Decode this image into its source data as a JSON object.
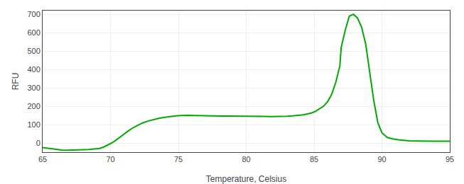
{
  "chart_data": {
    "type": "line",
    "xlabel": "Temperature, Celsius",
    "ylabel": "RFU",
    "x": [
      65.0,
      65.3,
      65.6,
      66.0,
      66.4,
      66.8,
      67.2,
      67.6,
      68.0,
      68.4,
      68.8,
      69.2,
      69.5,
      69.8,
      70.1,
      70.4,
      70.7,
      71.0,
      71.3,
      71.6,
      72.0,
      72.4,
      72.8,
      73.2,
      73.6,
      74.0,
      74.4,
      74.8,
      75.2,
      75.5,
      75.8,
      76.2,
      76.6,
      77.0,
      77.4,
      77.8,
      78.2,
      78.6,
      79.0,
      79.4,
      79.8,
      80.2,
      80.6,
      81.0,
      81.4,
      81.8,
      82.2,
      82.6,
      83.0,
      83.4,
      83.8,
      84.2,
      84.5,
      84.8,
      85.1,
      85.4,
      85.7,
      86.0,
      86.3,
      86.6,
      86.9,
      87.0,
      87.3,
      87.6,
      87.9,
      88.2,
      88.5,
      88.8,
      89.1,
      89.4,
      89.7,
      90.0,
      90.4,
      90.8,
      91.2,
      91.6,
      92.0,
      92.5,
      93.0,
      93.5,
      94.0,
      94.5,
      95.0
    ],
    "values": [
      -25,
      -28,
      -32,
      -36,
      -38,
      -39,
      -39,
      -38,
      -37,
      -36,
      -34,
      -30,
      -22,
      -12,
      0,
      15,
      30,
      48,
      65,
      80,
      96,
      110,
      120,
      128,
      135,
      140,
      144,
      147,
      149,
      150,
      150,
      149,
      148,
      148,
      147,
      147,
      146,
      146,
      146,
      145,
      145,
      145,
      144,
      144,
      144,
      143,
      143,
      144,
      145,
      147,
      149,
      153,
      158,
      163,
      172,
      185,
      200,
      225,
      265,
      330,
      420,
      520,
      615,
      690,
      700,
      680,
      630,
      540,
      390,
      230,
      110,
      55,
      30,
      22,
      17,
      14,
      12,
      11,
      10,
      10,
      10,
      10,
      10
    ],
    "color": "#00aa00",
    "xlim": [
      65,
      95
    ],
    "ylim": [
      -50,
      720
    ],
    "xticks": [
      65,
      70,
      75,
      80,
      85,
      90,
      95
    ],
    "yticks": [
      0,
      100,
      200,
      300,
      400,
      500,
      600,
      700
    ],
    "grid": true
  }
}
